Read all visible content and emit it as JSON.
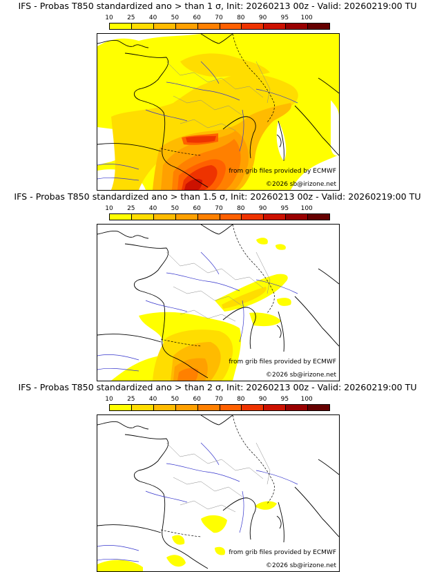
{
  "colorbar": {
    "labels": [
      "10",
      "25",
      "40",
      "50",
      "60",
      "70",
      "80",
      "90",
      "95",
      "100"
    ],
    "colors": [
      "#ffff00",
      "#ffdd00",
      "#ffbb00",
      "#ffa000",
      "#ff8000",
      "#ff6000",
      "#ee3300",
      "#cc1100",
      "#990000",
      "#660000"
    ]
  },
  "credit_line": "from grib files provided by ECMWF",
  "copyright": "©2026 sb@irizone.net",
  "panels": [
    {
      "title": "IFS - Probas T850  standardized ano > than 1 σ, Init: 20260213 00z - Valid: 20260219:00 TU",
      "threshold": "1 σ"
    },
    {
      "title": "IFS - Probas T850  standardized ano > than 1.5 σ, Init: 20260213 00z - Valid: 20260219:00 TU",
      "threshold": "1.5 σ"
    },
    {
      "title": "IFS - Probas T850  standardized ano > than 2 σ, Init: 20260213 00z - Valid: 20260219:00 TU",
      "threshold": "2 σ"
    }
  ]
}
